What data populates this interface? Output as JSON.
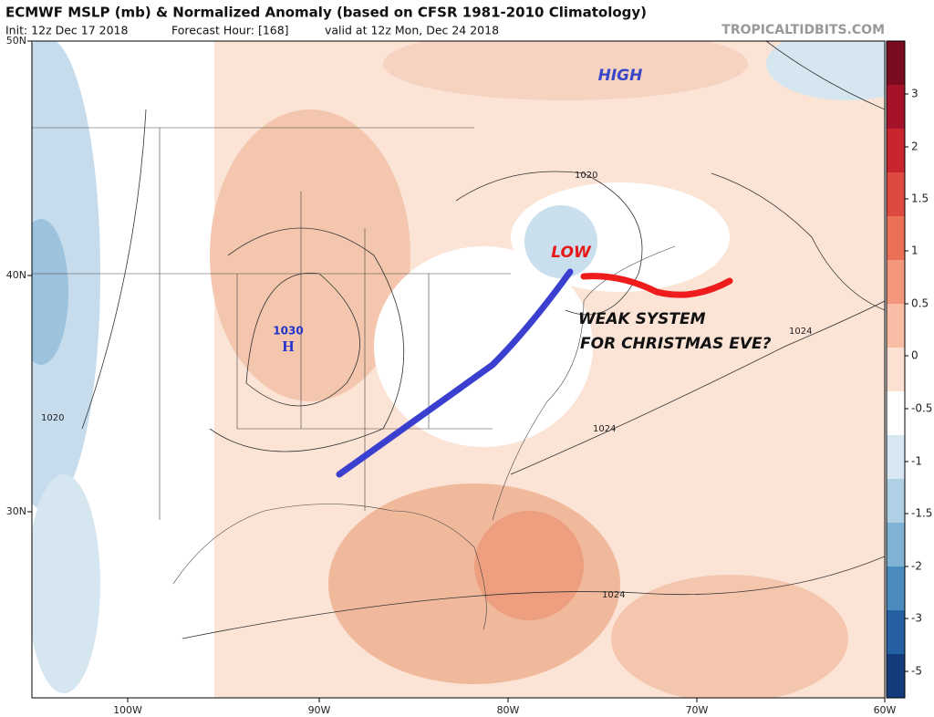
{
  "header": {
    "title": "ECMWF MSLP (mb) & Normalized Anomaly (based on CFSR 1981-2010 Climatology)",
    "init": "Init: 12z Dec 17 2018",
    "forecast_hour": "Forecast Hour: [168]",
    "valid": "valid at 12z Mon, Dec 24 2018",
    "source": "TROPICALTIDBITS.COM"
  },
  "map": {
    "lat_labels": [
      "50N",
      "40N",
      "30N"
    ],
    "lon_labels": [
      "100W",
      "90W",
      "80W",
      "70W",
      "60W"
    ],
    "annotations": {
      "high": "HIGH",
      "low": "LOW",
      "center_pressure": "1030",
      "center_letter": "H",
      "note_line1": "WEAK SYSTEM",
      "note_line2": "FOR CHRISTMAS EVE?"
    },
    "isobar_labels": [
      "1020",
      "1020",
      "1024",
      "1024",
      "1024"
    ]
  },
  "colorbar": {
    "ticks": [
      3,
      2,
      1.5,
      1,
      0.5,
      0,
      -0.5,
      -1,
      -1.5,
      -2,
      -3,
      -5
    ]
  }
}
